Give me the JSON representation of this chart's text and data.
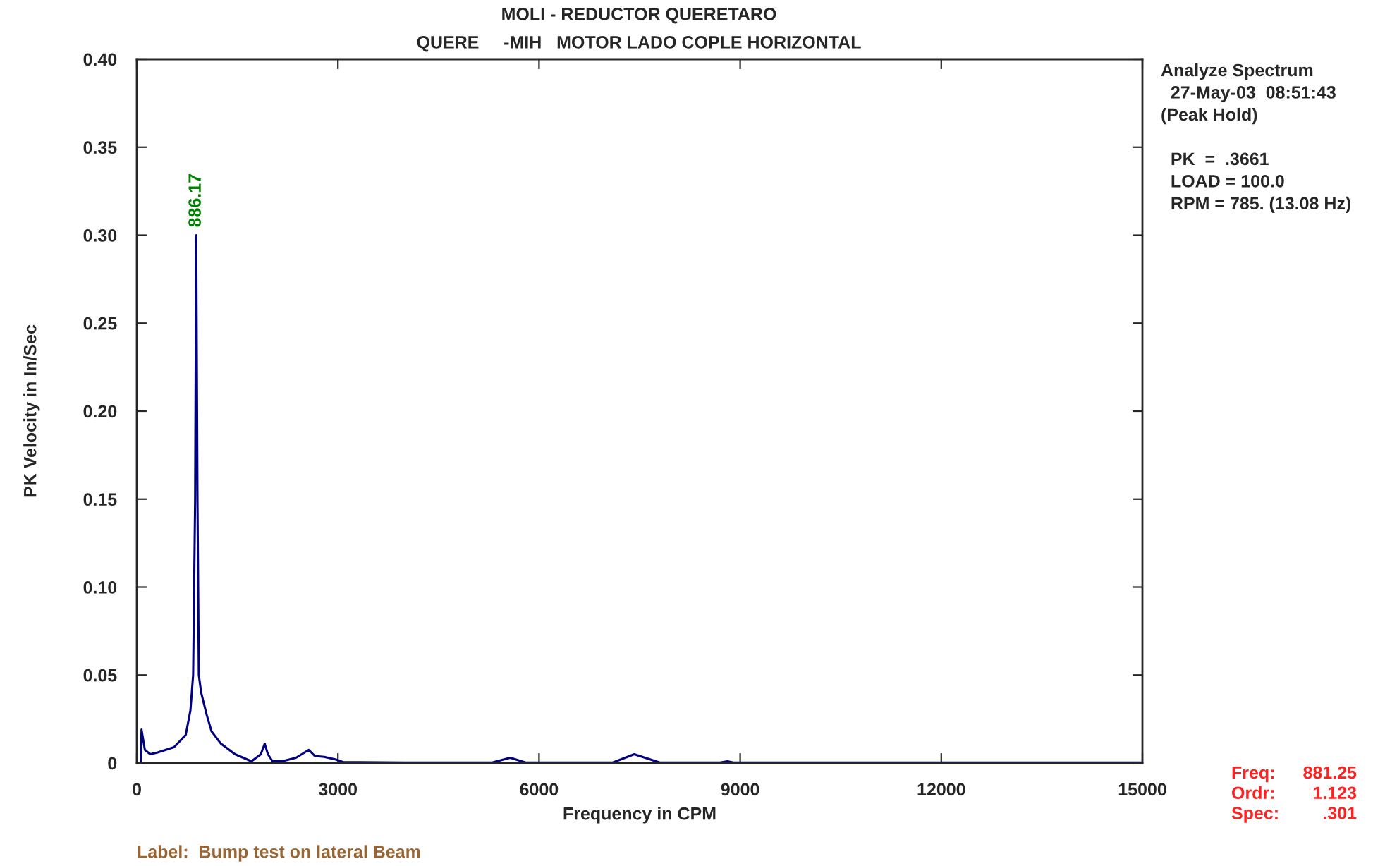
{
  "chart_data": {
    "type": "line",
    "title": "MOLI - REDUCTOR QUERETARO",
    "subtitle": "QUERE     -MIH   MOTOR LADO COPLE HORIZONTAL",
    "xlabel": "Frequency in CPM",
    "ylabel": "PK Velocity in In/Sec",
    "xlim": [
      0,
      15000
    ],
    "xticks": [
      0,
      3000,
      6000,
      9000,
      12000,
      15000
    ],
    "ylim": [
      0,
      0.4
    ],
    "yticks": [
      0,
      {
        "value": 0.05,
        "label": "0.05"
      },
      {
        "value": 0.1,
        "label": "0.10"
      },
      {
        "value": 0.15,
        "label": "0.15"
      },
      {
        "value": 0.2,
        "label": "0.20"
      },
      {
        "value": 0.25,
        "label": "0.25"
      },
      {
        "value": 0.3,
        "label": "0.30"
      },
      {
        "value": 0.35,
        "label": "0.35"
      },
      {
        "value": 0.4,
        "label": "0.40"
      }
    ],
    "grid": false,
    "legend": false,
    "marker": "none",
    "line_style": "solid",
    "series": [
      {
        "color": "#000080",
        "x": [
          63,
          70,
          120,
          200,
          310,
          555,
          730,
          800,
          840,
          870,
          886.17,
          905,
          925,
          960,
          1045,
          1115,
          1255,
          1465,
          1710,
          1850,
          1908,
          1955,
          2025,
          2165,
          2375,
          2565,
          2655,
          2795,
          2970,
          3080,
          4000,
          5300,
          5570,
          5800,
          7100,
          7420,
          7800,
          8700,
          8810,
          8900,
          10000,
          12000,
          15000
        ],
        "values": [
          0.0,
          0.019,
          0.0075,
          0.005,
          0.006,
          0.009,
          0.016,
          0.03,
          0.05,
          0.15,
          0.3,
          0.15,
          0.05,
          0.04,
          0.027,
          0.018,
          0.011,
          0.005,
          0.001,
          0.005,
          0.011,
          0.005,
          0.001,
          0.001,
          0.003,
          0.0075,
          0.004,
          0.0035,
          0.002,
          0.0005,
          0.0003,
          0.0003,
          0.003,
          0.0003,
          0.0003,
          0.005,
          0.0003,
          0.0003,
          0.001,
          0.0003,
          0.0003,
          0.0003,
          0.0003
        ]
      }
    ],
    "annotations": [
      {
        "text": "886.17",
        "x": 886.17,
        "y": 0.3
      },
      "Analyze Spectrum\n  27-May-03  08:51:43\n(Peak Hold)\n\n  PK  =  .3661\n  LOAD = 100.0\n  RPM = 785. (13.08 Hz)",
      "Freq:\nOrdr:\nSpec:",
      "881.25\n1.123\n.301",
      "Label:  Bump test on lateral Beam"
    ]
  }
}
